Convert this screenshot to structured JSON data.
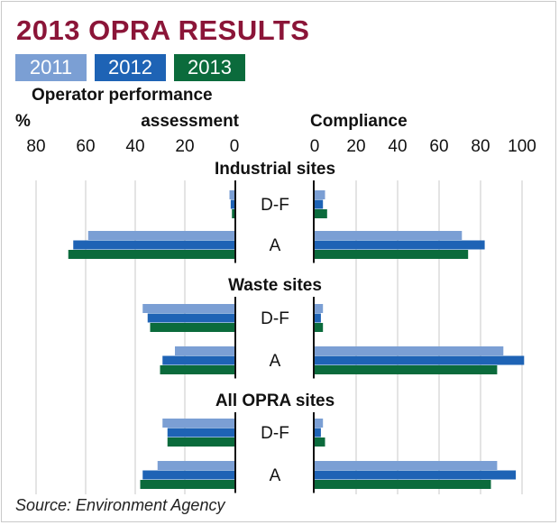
{
  "title": "2013 OPRA RESULTS",
  "source": "Source: Environment Agency",
  "colors": {
    "title": "#8b1538",
    "2011": "#7b9fd4",
    "2012": "#1e63b5",
    "2013": "#0b6b3c",
    "grid": "#c8c8c8",
    "axis": "#111111"
  },
  "chart_data": {
    "type": "bar",
    "orientation": "horizontal",
    "legend": [
      "2011",
      "2012",
      "2013"
    ],
    "left_panel": {
      "title_line1": "Operator performance",
      "title_line2": "assessment",
      "unit": "%",
      "ticks": [
        80,
        60,
        40,
        20,
        0
      ],
      "xlim": [
        0,
        80
      ]
    },
    "right_panel": {
      "title": "Compliance",
      "ticks": [
        0,
        20,
        40,
        60,
        80,
        100
      ],
      "xlim": [
        0,
        100
      ]
    },
    "groups": [
      {
        "name": "Industrial sites",
        "categories": [
          {
            "label": "D-F",
            "left": [
              2,
              1.5,
              1
            ],
            "right": [
              5,
              4,
              6
            ]
          },
          {
            "label": "A",
            "left": [
              59,
              65,
              67
            ],
            "right": [
              71,
              82,
              74
            ]
          }
        ]
      },
      {
        "name": "Waste sites",
        "categories": [
          {
            "label": "D-F",
            "left": [
              37,
              35,
              34
            ],
            "right": [
              4,
              3,
              4
            ]
          },
          {
            "label": "A",
            "left": [
              24,
              29,
              30
            ],
            "right": [
              91,
              101,
              88
            ]
          }
        ]
      },
      {
        "name": "All OPRA sites",
        "categories": [
          {
            "label": "D-F",
            "left": [
              29,
              27,
              27
            ],
            "right": [
              4,
              3,
              5
            ]
          },
          {
            "label": "A",
            "left": [
              31,
              37,
              38
            ],
            "right": [
              88,
              97,
              85
            ]
          }
        ]
      }
    ]
  }
}
